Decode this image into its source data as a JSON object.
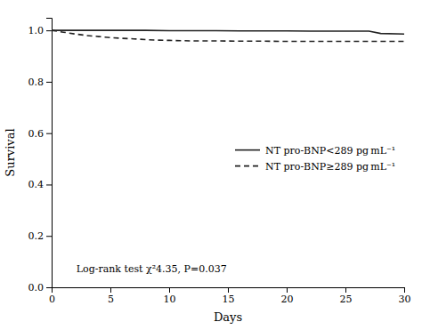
{
  "chart_data": {
    "type": "line",
    "xlabel": "Days",
    "ylabel": "Survival",
    "annotation": "Log-rank test χ²4.35, P=0.037",
    "xlim": [
      0,
      30
    ],
    "ylim": [
      0.0,
      1.049
    ],
    "xticks": [
      0,
      5,
      10,
      15,
      20,
      25,
      30
    ],
    "yticks": [
      {
        "value": 0.0,
        "label": "0.0"
      },
      0.2,
      0.4,
      0.6,
      0.8,
      {
        "value": 1.0,
        "label": "1.0"
      }
    ],
    "grid": false,
    "legend": "center right",
    "series": [
      {
        "name": "NT pro-BNP<289 pg mL⁻¹",
        "color": "#222222",
        "line_style": "solid",
        "x": [
          0,
          0.5,
          2,
          4,
          6,
          8,
          10,
          12,
          14,
          16,
          18,
          20,
          22,
          24,
          26,
          27,
          28,
          30
        ],
        "values": [
          1.0,
          1.0,
          1.0,
          1.0,
          1.0,
          1.0,
          0.999,
          0.999,
          0.999,
          0.998,
          0.998,
          0.998,
          0.997,
          0.997,
          0.997,
          0.997,
          0.988,
          0.986
        ]
      },
      {
        "name": "NT pro-BNP≥289 pg mL⁻¹",
        "color": "#222222",
        "line_style": "dashed",
        "x": [
          0,
          1,
          2,
          3,
          4,
          5,
          6,
          7,
          8,
          9,
          10,
          11,
          12,
          14,
          16,
          18,
          20,
          22,
          24,
          26,
          28,
          30
        ],
        "values": [
          1.0,
          0.993,
          0.986,
          0.98,
          0.976,
          0.972,
          0.969,
          0.967,
          0.964,
          0.962,
          0.961,
          0.96,
          0.959,
          0.959,
          0.958,
          0.958,
          0.957,
          0.957,
          0.957,
          0.957,
          0.957,
          0.957
        ]
      }
    ]
  }
}
